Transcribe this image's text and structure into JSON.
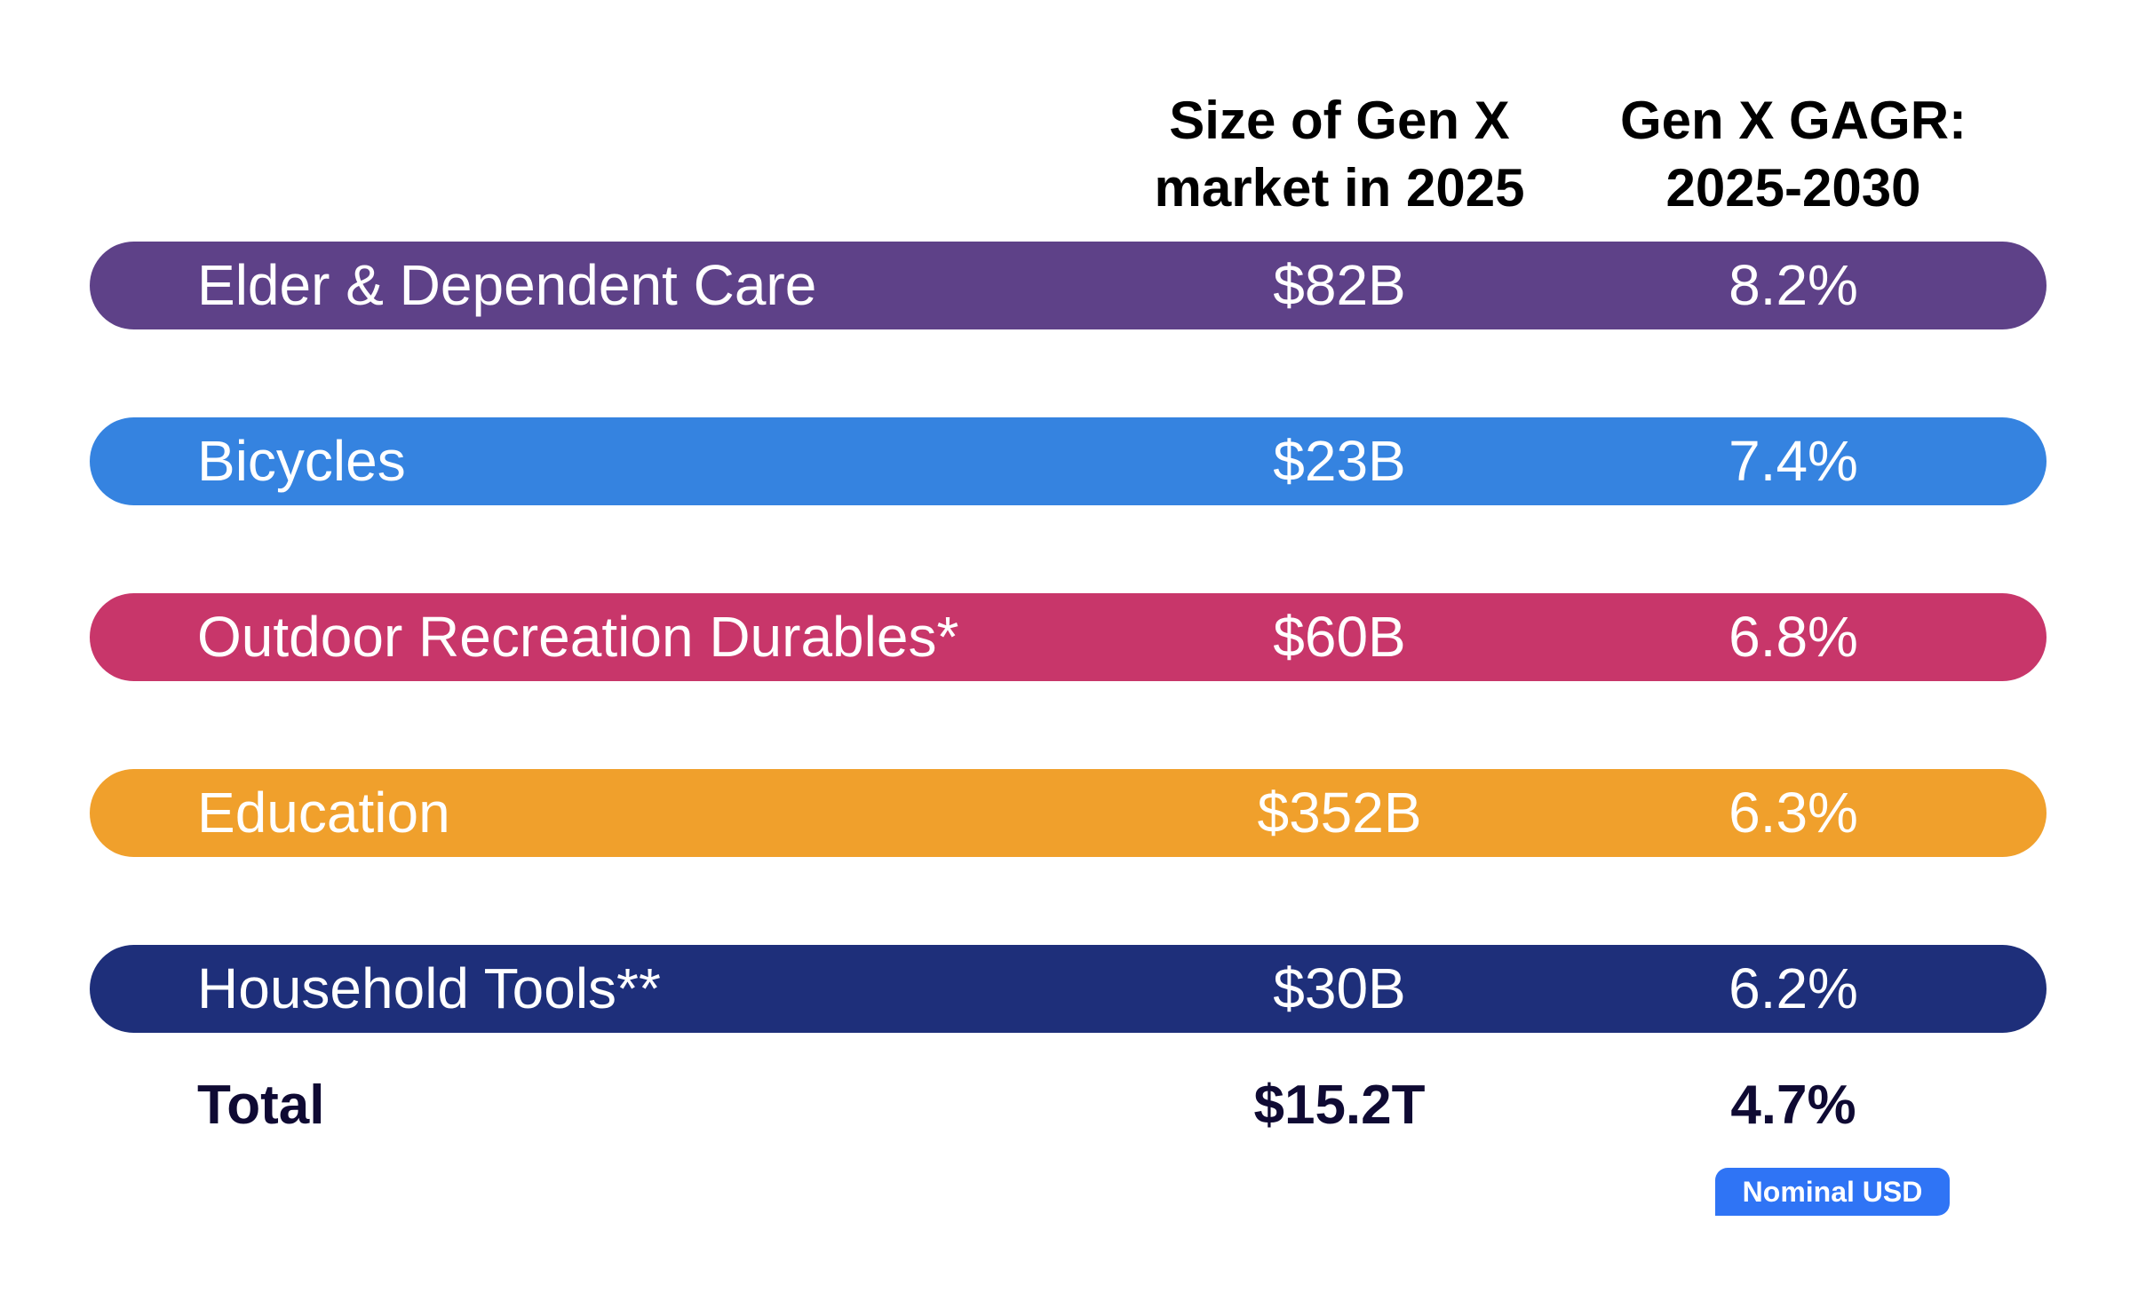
{
  "headers": {
    "size": [
      "Size of Gen X",
      "market in 2025"
    ],
    "cagr": [
      "Gen X GAGR:",
      "2025-2030"
    ]
  },
  "rows": [
    {
      "label": "Elder & Dependent Care",
      "size": "$82B",
      "cagr": "8.2%",
      "color": "#5E4188"
    },
    {
      "label": "Bicycles",
      "size": "$23B",
      "cagr": "7.4%",
      "color": "#3583E0"
    },
    {
      "label": "Outdoor Recreation Durables*",
      "size": "$60B",
      "cagr": "6.8%",
      "color": "#C8366A"
    },
    {
      "label": "Education",
      "size": "$352B",
      "cagr": "6.3%",
      "color": "#F0A02C"
    },
    {
      "label": "Household Tools**",
      "size": "$30B",
      "cagr": "6.2%",
      "color": "#1E2F7A"
    }
  ],
  "total": {
    "label": "Total",
    "size": "$15.2T",
    "cagr": "4.7%"
  },
  "badge": {
    "label": "Nominal USD",
    "color": "#2F74F5"
  }
}
